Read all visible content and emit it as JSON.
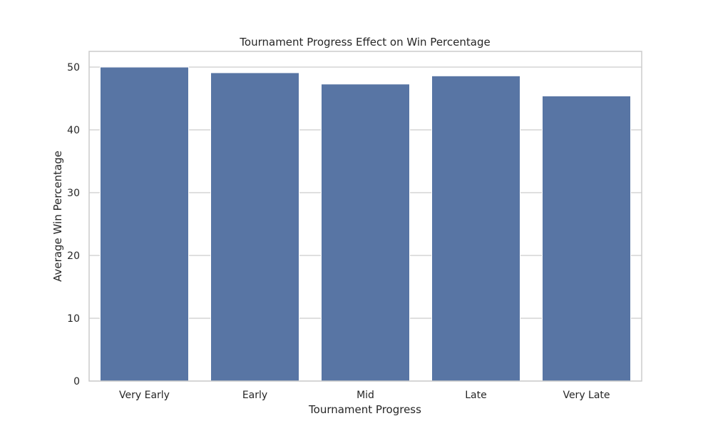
{
  "chart_data": {
    "type": "bar",
    "title": "Tournament Progress Effect on Win Percentage",
    "xlabel": "Tournament Progress",
    "ylabel": "Average Win Percentage",
    "categories": [
      "Very Early",
      "Early",
      "Mid",
      "Late",
      "Very Late"
    ],
    "values": [
      50.0,
      49.1,
      47.3,
      48.6,
      45.4
    ],
    "ylim": [
      0,
      52.5
    ],
    "yticks": [
      0,
      10,
      20,
      30,
      40,
      50
    ],
    "grid": true,
    "bar_color": "#5875a4",
    "grid_color": "#cccccc",
    "frame_color": "#cccccc"
  }
}
